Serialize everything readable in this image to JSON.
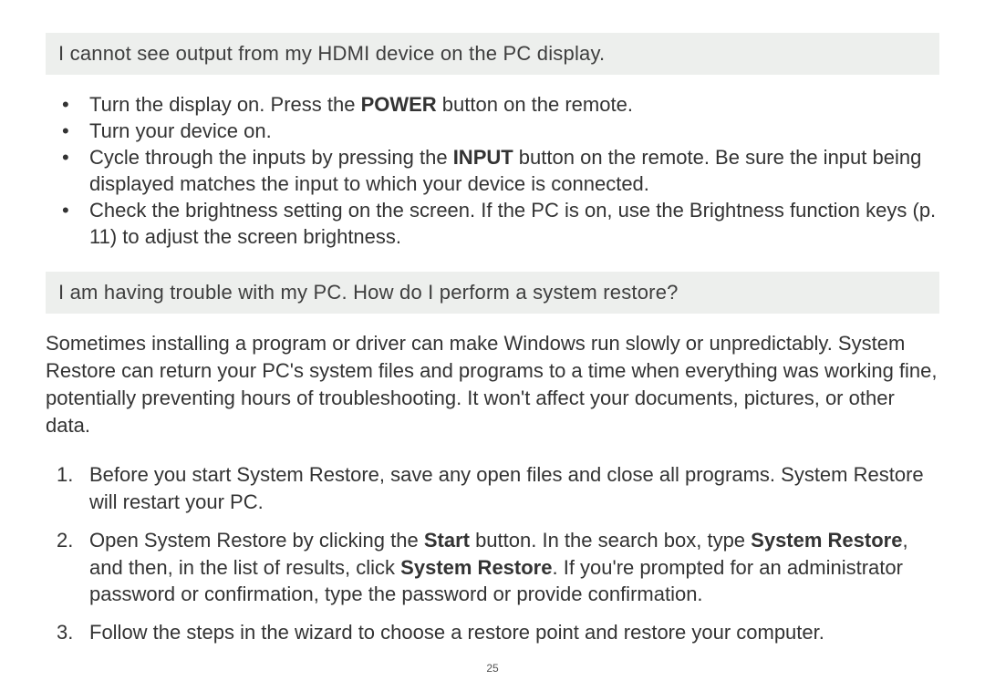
{
  "colors": {
    "page_bg": "#ffffff",
    "question_bg": "#edefed",
    "text": "#333333"
  },
  "typography": {
    "body_family": "Century Gothic / Avant Garde / sans-serif",
    "body_size_pt": 16,
    "line_height": 1.35
  },
  "section1": {
    "question": "I cannot see output from my HDMI device on the PC display.",
    "bullets": {
      "0": {
        "pre": "Turn the display on. Press the ",
        "bold1": "POWER",
        "post": " button on the remote."
      },
      "1": {
        "text": "Turn your device on."
      },
      "2": {
        "pre": "Cycle through the inputs by pressing the ",
        "bold1": "INPUT",
        "post": " button on the remote. Be sure the input being displayed matches the input to which your device is connected."
      },
      "3": {
        "text": "Check the brightness setting on the screen. If the PC is on, use the Brightness function keys (p. 11) to adjust the screen brightness."
      }
    }
  },
  "section2": {
    "question": "I am having trouble with my PC. How do I perform a system restore?",
    "intro": "Sometimes installing a program or driver can make Windows run slowly or unpredictably. System Restore can return your PC's system files and programs to a time when everything was working fine, potentially preventing hours of troubleshooting. It won't affect your documents, pictures, or other data.",
    "steps": {
      "0": {
        "text": "Before you start System Restore, save any open files and close all programs. System Restore will restart your PC."
      },
      "1": {
        "pre": "Open System Restore by clicking the ",
        "bold1": "Start",
        "mid1": " button. In the search box, type ",
        "bold2": "System Restore",
        "mid2": ", and then, in the list of results, click ",
        "bold3": "System Restore",
        "post": ". If you're prompted for an administrator password or confirmation, type the password or provide confirmation."
      },
      "2": {
        "text": "Follow the steps in the wizard to choose a restore point and restore your computer."
      }
    }
  },
  "page_number": "25"
}
